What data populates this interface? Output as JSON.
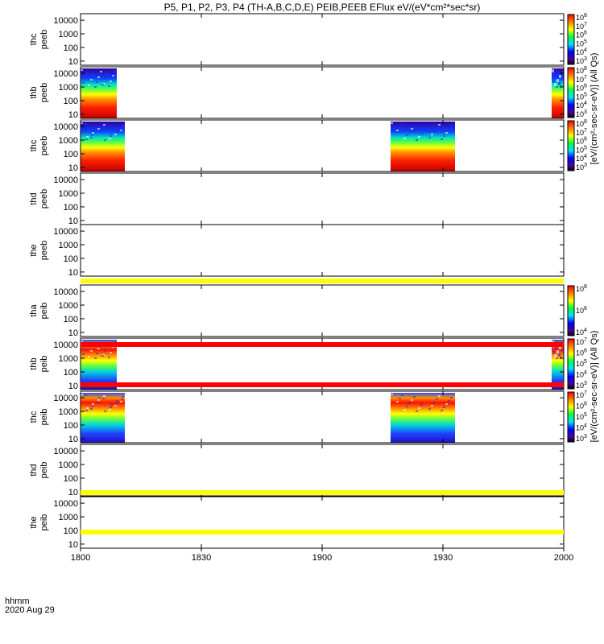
{
  "title": "P5, P1, P2, P3, P4 (TH-A,B,C,D,E) PEIB,PEEB EFlux eV/(eV*cm²*sec*sr)",
  "footer": {
    "line1": "hhmm",
    "line2": "2020 Aug 29"
  },
  "colors": {
    "frame": "#000000",
    "bar_yellow": "#ffff00",
    "bar_red": "#ff0000"
  },
  "colorbar_labels": {
    "electron": "[eV/(cm²-sec-sr-eV)] (All Qs)",
    "ion": "[eV/(cm²-sec-sr-eV)] (All Qs)"
  },
  "chart_data": {
    "type": "heatmap",
    "x_axis": {
      "range": [
        "1800",
        "2000"
      ],
      "ticks": [
        "1800",
        "1830",
        "1900",
        "1930",
        "2000"
      ]
    },
    "y_axis": {
      "scale": "log",
      "range": [
        5,
        30000
      ],
      "ticks": [
        "10",
        "100",
        "1000",
        "10000"
      ]
    },
    "panels": [
      {
        "label1": "thc",
        "label2": "peeb",
        "coverage": [],
        "colorbar": {
          "ticks": [
            "10^8",
            "10^7",
            "10^6",
            "10^5",
            "10^4",
            "10^3"
          ]
        }
      },
      {
        "label1": "thb",
        "label2": "peeb",
        "coverage": [
          [
            "1800",
            "1809"
          ],
          [
            "1957",
            "2000"
          ]
        ],
        "colorbar": {
          "ticks": [
            "10^8",
            "10^7",
            "10^6",
            "10^5",
            "10^4",
            "10^3"
          ]
        }
      },
      {
        "label1": "thc",
        "label2": "peeb",
        "coverage": [
          [
            "1800",
            "1811"
          ],
          [
            "1917",
            "1933"
          ]
        ],
        "colorbar": {
          "ticks": [
            "10^8",
            "10^7",
            "10^6",
            "10^5",
            "10^4",
            "10^3"
          ]
        }
      },
      {
        "label1": "thd",
        "label2": "peeb",
        "coverage": []
      },
      {
        "label1": "the",
        "label2": "peeb",
        "coverage": []
      },
      {
        "label1": "tha",
        "label2": "peib",
        "coverage": [],
        "colorbar": {
          "ticks": [
            "10^8",
            "10^6",
            "10^4"
          ]
        }
      },
      {
        "label1": "thb",
        "label2": "peib",
        "coverage": [
          [
            "1800",
            "1809"
          ],
          [
            "1957",
            "2000"
          ]
        ],
        "colorbar": {
          "ticks": [
            "10^7",
            "10^6",
            "10^5",
            "10^4",
            "10^3"
          ]
        }
      },
      {
        "label1": "thc",
        "label2": "peib",
        "coverage": [
          [
            "1800",
            "1811"
          ],
          [
            "1917",
            "1933"
          ]
        ],
        "colorbar": {
          "ticks": [
            "10^7",
            "10^6",
            "10^5",
            "10^4",
            "10^3"
          ]
        }
      },
      {
        "label1": "thd",
        "label2": "peib",
        "coverage": []
      },
      {
        "label1": "the",
        "label2": "peib",
        "coverage": []
      }
    ]
  }
}
